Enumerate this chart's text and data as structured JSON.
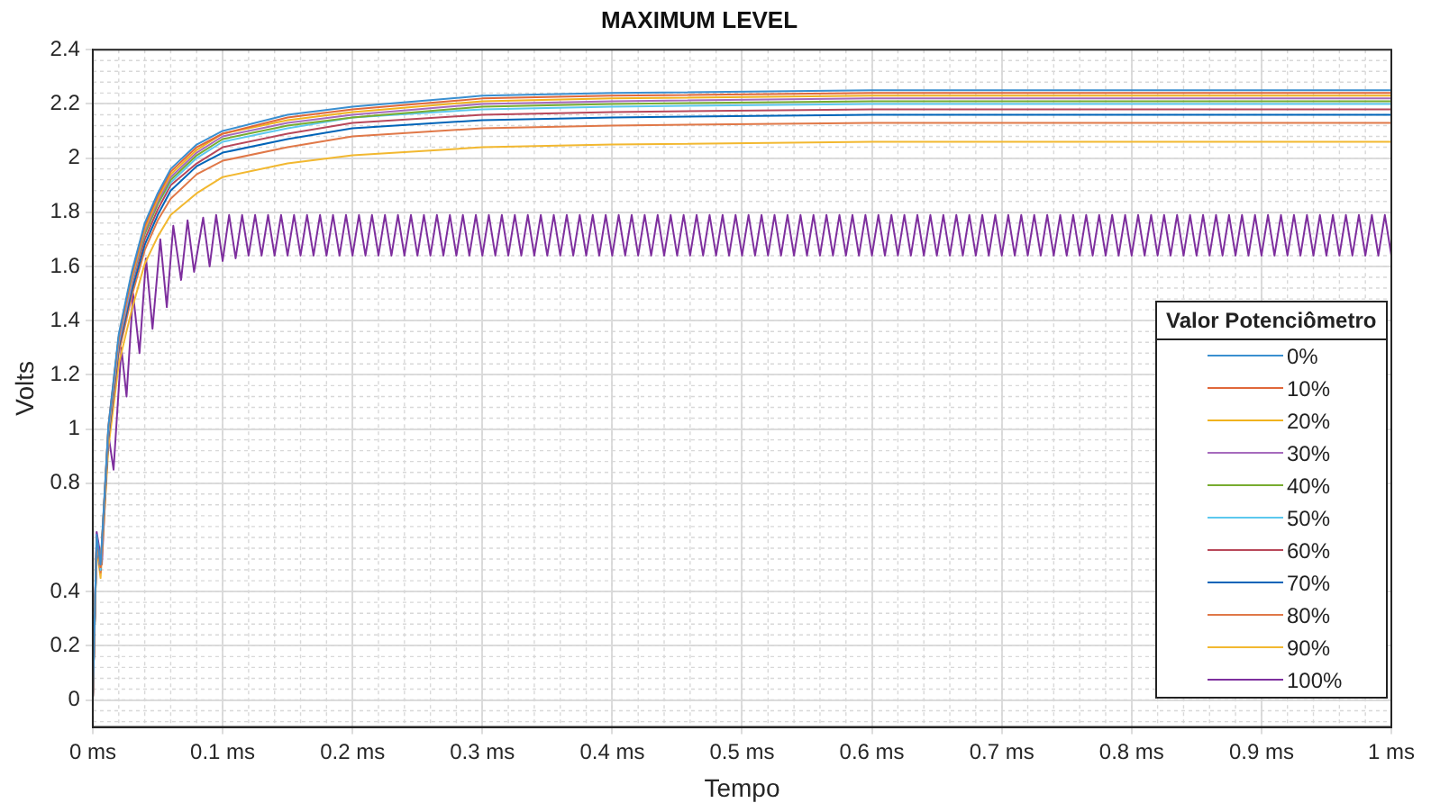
{
  "chart_data": {
    "type": "line",
    "title": "MAXIMUM LEVEL",
    "xlabel": "Tempo",
    "ylabel": "Volts",
    "legend_title": "Valor Potenciômetro",
    "legend": "bottom right",
    "grid": true,
    "x": [
      0,
      0.003,
      0.006,
      0.012,
      0.02,
      0.03,
      0.04,
      0.05,
      0.06,
      0.08,
      0.1,
      0.15,
      0.2,
      0.3,
      0.4,
      0.6,
      1
    ],
    "xlim": [
      0,
      1
    ],
    "xticks": [
      {
        "value": 0,
        "label": "0 ms"
      },
      {
        "value": 0.1,
        "label": "0.1 ms"
      },
      {
        "value": 0.2,
        "label": "0.2 ms"
      },
      {
        "value": 0.3,
        "label": "0.3 ms"
      },
      {
        "value": 0.4,
        "label": "0.4 ms"
      },
      {
        "value": 0.5,
        "label": "0.5 ms"
      },
      {
        "value": 0.6,
        "label": "0.6 ms"
      },
      {
        "value": 0.7,
        "label": "0.7 ms"
      },
      {
        "value": 0.8,
        "label": "0.8 ms"
      },
      {
        "value": 0.9,
        "label": "0.9 ms"
      },
      {
        "value": 1,
        "label": "1 ms"
      }
    ],
    "ylim": [
      -0.1,
      2.4
    ],
    "yticks": [
      0,
      0.2,
      0.4,
      0.8,
      1,
      1.2,
      1.4,
      1.6,
      1.8,
      2,
      2.2,
      2.4
    ],
    "series": [
      {
        "name": "0%",
        "color": "#3a8fd0",
        "values": [
          0,
          0.61,
          0.5,
          1.01,
          1.35,
          1.58,
          1.76,
          1.87,
          1.96,
          2.05,
          2.1,
          2.16,
          2.19,
          2.23,
          2.24,
          2.25,
          2.25
        ]
      },
      {
        "name": "10%",
        "color": "#e0683a",
        "values": [
          0,
          0.6,
          0.49,
          1.01,
          1.34,
          1.57,
          1.75,
          1.86,
          1.95,
          2.04,
          2.09,
          2.15,
          2.18,
          2.22,
          2.23,
          2.24,
          2.24
        ]
      },
      {
        "name": "20%",
        "color": "#f0b21e",
        "values": [
          0,
          0.6,
          0.49,
          1,
          1.34,
          1.56,
          1.74,
          1.85,
          1.94,
          2.03,
          2.09,
          2.14,
          2.17,
          2.21,
          2.22,
          2.23,
          2.23
        ]
      },
      {
        "name": "30%",
        "color": "#a66bbd",
        "values": [
          0,
          0.6,
          0.49,
          1,
          1.33,
          1.55,
          1.73,
          1.84,
          1.93,
          2.02,
          2.08,
          2.13,
          2.16,
          2.2,
          2.21,
          2.22,
          2.22
        ]
      },
      {
        "name": "40%",
        "color": "#77ac30",
        "values": [
          null,
          null,
          null,
          null,
          null,
          1.55,
          1.72,
          1.83,
          1.92,
          2.01,
          2.07,
          2.12,
          2.15,
          2.19,
          2.2,
          2.21,
          2.21
        ]
      },
      {
        "name": "50%",
        "color": "#5cc8ee",
        "values": [
          0,
          0.59,
          0.48,
          0.99,
          1.32,
          1.54,
          1.72,
          1.83,
          1.91,
          2,
          2.06,
          2.11,
          2.15,
          2.18,
          2.19,
          2.2,
          2.2
        ]
      },
      {
        "name": "60%",
        "color": "#b8485a",
        "values": [
          0,
          0.59,
          0.48,
          0.98,
          1.31,
          1.53,
          1.7,
          1.81,
          1.9,
          1.98,
          2.04,
          2.09,
          2.13,
          2.16,
          2.17,
          2.18,
          2.18
        ]
      },
      {
        "name": "70%",
        "color": "#0064b8",
        "values": [
          0,
          0.58,
          0.48,
          0.97,
          1.3,
          1.51,
          1.68,
          1.79,
          1.88,
          1.97,
          2.02,
          2.07,
          2.11,
          2.14,
          2.15,
          2.16,
          2.16
        ]
      },
      {
        "name": "80%",
        "color": "#e07848",
        "values": [
          0,
          0.58,
          0.47,
          0.96,
          1.28,
          1.49,
          1.66,
          1.77,
          1.85,
          1.94,
          1.99,
          2.04,
          2.08,
          2.11,
          2.12,
          2.13,
          2.13
        ]
      },
      {
        "name": "90%",
        "color": "#f2b830",
        "values": [
          0,
          0.56,
          0.45,
          0.93,
          1.24,
          1.44,
          1.61,
          1.71,
          1.79,
          1.87,
          1.93,
          1.98,
          2.01,
          2.04,
          2.05,
          2.06,
          2.06
        ]
      },
      {
        "name": "100%",
        "color": "#7e2f9e",
        "x": [
          0,
          0.003,
          0.007,
          0.012,
          0.016,
          0.022,
          0.026,
          0.031,
          0.036,
          0.041,
          0.046,
          0.052,
          0.057,
          0.062,
          0.068,
          0.073,
          0.078,
          0.085,
          0.09,
          0.095,
          0.1,
          0.105,
          0.11,
          0.115,
          0.12,
          0.125,
          0.13,
          0.135,
          0.14,
          0.145,
          0.15,
          0.155,
          0.16,
          0.165,
          0.17,
          0.175,
          0.18,
          0.185,
          0.19,
          0.195,
          0.2,
          0.205,
          0.21,
          0.215,
          0.22,
          0.225,
          0.23,
          0.235,
          0.24,
          0.245,
          0.25,
          0.255,
          0.26,
          0.265,
          0.27,
          0.275,
          0.28,
          0.285,
          0.29,
          0.295,
          0.3,
          0.305,
          0.31,
          0.315,
          0.32,
          0.325,
          0.33,
          0.335,
          0.34,
          0.345,
          0.35,
          0.355,
          0.36,
          0.365,
          0.37,
          0.375,
          0.38,
          0.385,
          0.39,
          0.395,
          0.4,
          0.405,
          0.41,
          0.415,
          0.42,
          0.425,
          0.43,
          0.435,
          0.44,
          0.445,
          0.45,
          0.455,
          0.46,
          0.465,
          0.47,
          0.475,
          0.48,
          0.485,
          0.49,
          0.495,
          0.5,
          0.505,
          0.51,
          0.515,
          0.52,
          0.525,
          0.53,
          0.535,
          0.54,
          0.545,
          0.55,
          0.555,
          0.56,
          0.565,
          0.57,
          0.575,
          0.58,
          0.585,
          0.59,
          0.595,
          0.6,
          0.605,
          0.61,
          0.615,
          0.62,
          0.625,
          0.63,
          0.635,
          0.64,
          0.645,
          0.65,
          0.655,
          0.66,
          0.665,
          0.67,
          0.675,
          0.68,
          0.685,
          0.69,
          0.695,
          0.7,
          0.705,
          0.71,
          0.715,
          0.72,
          0.725,
          0.73,
          0.735,
          0.74,
          0.745,
          0.75,
          0.755,
          0.76,
          0.765,
          0.77,
          0.775,
          0.78,
          0.785,
          0.79,
          0.795,
          0.8,
          0.805,
          0.81,
          0.815,
          0.82,
          0.825,
          0.83,
          0.835,
          0.84,
          0.845,
          0.85,
          0.855,
          0.86,
          0.865,
          0.87,
          0.875,
          0.88,
          0.885,
          0.89,
          0.895,
          0.9,
          0.905,
          0.91,
          0.915,
          0.92,
          0.925,
          0.93,
          0.935,
          0.94,
          0.945,
          0.95,
          0.955,
          0.96,
          0.965,
          0.97,
          0.975,
          0.98,
          0.985,
          0.99,
          0.995,
          1
        ],
        "values": [
          0,
          0.62,
          0.5,
          0.98,
          0.85,
          1.3,
          1.12,
          1.5,
          1.28,
          1.63,
          1.37,
          1.7,
          1.45,
          1.75,
          1.55,
          1.77,
          1.58,
          1.78,
          1.6,
          1.79,
          1.62,
          1.79,
          1.63,
          1.79,
          1.64,
          1.79,
          1.64,
          1.79,
          1.64,
          1.79,
          1.64,
          1.79,
          1.64,
          1.79,
          1.64,
          1.79,
          1.64,
          1.79,
          1.64,
          1.79,
          1.64,
          1.79,
          1.64,
          1.79,
          1.64,
          1.79,
          1.64,
          1.79,
          1.64,
          1.79,
          1.64,
          1.79,
          1.64,
          1.79,
          1.64,
          1.79,
          1.64,
          1.79,
          1.64,
          1.79,
          1.64,
          1.79,
          1.64,
          1.79,
          1.64,
          1.79,
          1.64,
          1.79,
          1.64,
          1.79,
          1.64,
          1.79,
          1.64,
          1.79,
          1.64,
          1.79,
          1.64,
          1.79,
          1.64,
          1.79,
          1.64,
          1.79,
          1.64,
          1.79,
          1.64,
          1.79,
          1.64,
          1.79,
          1.64,
          1.79,
          1.64,
          1.79,
          1.64,
          1.79,
          1.64,
          1.79,
          1.64,
          1.79,
          1.64,
          1.79,
          1.64,
          1.79,
          1.64,
          1.79,
          1.64,
          1.79,
          1.64,
          1.79,
          1.64,
          1.79,
          1.64,
          1.79,
          1.64,
          1.79,
          1.64,
          1.79,
          1.64,
          1.79,
          1.64,
          1.79,
          1.64,
          1.79,
          1.64,
          1.79,
          1.64,
          1.79,
          1.64,
          1.79,
          1.64,
          1.79,
          1.64,
          1.79,
          1.64,
          1.79,
          1.64,
          1.79,
          1.64,
          1.79,
          1.64,
          1.79,
          1.64,
          1.79,
          1.64,
          1.79,
          1.64,
          1.79,
          1.64,
          1.79,
          1.64,
          1.79,
          1.64,
          1.79,
          1.64,
          1.79,
          1.64,
          1.79,
          1.64,
          1.79,
          1.64,
          1.79,
          1.64,
          1.79,
          1.64,
          1.79,
          1.64,
          1.79,
          1.64,
          1.79,
          1.64,
          1.79,
          1.64,
          1.79,
          1.64,
          1.79,
          1.64,
          1.79,
          1.64,
          1.79,
          1.64,
          1.79,
          1.64,
          1.79,
          1.64,
          1.79,
          1.64,
          1.79,
          1.64,
          1.79,
          1.64,
          1.79,
          1.64,
          1.79,
          1.64,
          1.79,
          1.64,
          1.79,
          1.64,
          1.79,
          1.64,
          1.79,
          1.64
        ]
      }
    ]
  }
}
